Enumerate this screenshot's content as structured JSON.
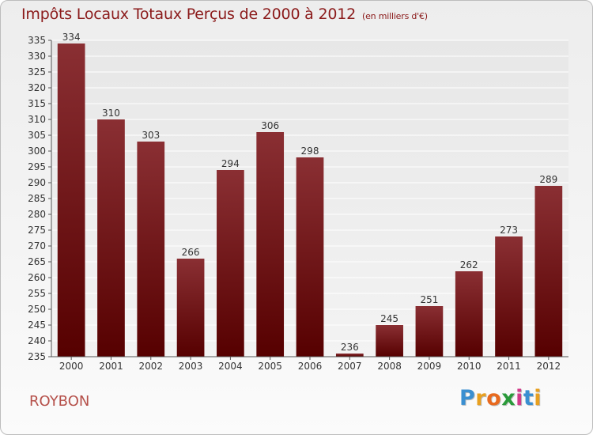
{
  "chart_data": {
    "type": "bar",
    "title": "Impôts Locaux Totaux Perçus de 2000 à 2012",
    "subtitle": "(en milliers d'€)",
    "categories": [
      "2000",
      "2001",
      "2002",
      "2003",
      "2004",
      "2005",
      "2006",
      "2007",
      "2008",
      "2009",
      "2010",
      "2011",
      "2012"
    ],
    "values": [
      334,
      310,
      303,
      266,
      294,
      306,
      298,
      236,
      245,
      251,
      262,
      273,
      289
    ],
    "ylim": [
      235,
      335
    ],
    "yticks": [
      235,
      240,
      245,
      250,
      255,
      260,
      265,
      270,
      275,
      280,
      285,
      290,
      295,
      300,
      305,
      310,
      315,
      320,
      325,
      330,
      335
    ],
    "grid": true,
    "bar_color": "#7a1c1c"
  },
  "footer": {
    "place": "ROYBON",
    "brand_letters": [
      "P",
      "r",
      "o",
      "x",
      "i",
      "t",
      "i"
    ],
    "brand_colors": [
      "#3a8fd1",
      "#e8a020",
      "#e86a1f",
      "#2a9a3a",
      "#d23a8a",
      "#3a8fd1",
      "#e8a020"
    ]
  }
}
